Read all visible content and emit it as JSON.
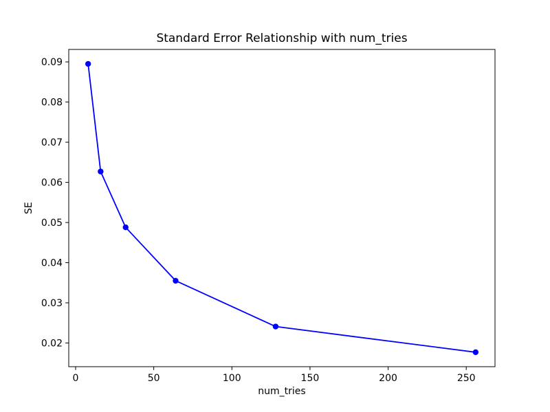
{
  "chart_data": {
    "type": "line",
    "title": "Standard Error Relationship with num_tries",
    "xlabel": "num_tries",
    "ylabel": "SE",
    "x": [
      8,
      16,
      32,
      64,
      128,
      256
    ],
    "y": [
      0.0895,
      0.0627,
      0.0488,
      0.0355,
      0.0241,
      0.0177
    ],
    "xlim": [
      -4.4,
      268.4
    ],
    "ylim": [
      0.0141,
      0.0931
    ],
    "xticks": [
      0,
      50,
      100,
      150,
      200,
      250
    ],
    "xtick_labels": [
      "0",
      "50",
      "100",
      "150",
      "200",
      "250"
    ],
    "yticks": [
      0.02,
      0.03,
      0.04,
      0.05,
      0.06,
      0.07,
      0.08,
      0.09
    ],
    "ytick_labels": [
      "0.02",
      "0.03",
      "0.04",
      "0.05",
      "0.06",
      "0.07",
      "0.08",
      "0.09"
    ],
    "line_color": "#0000ff",
    "marker": "circle",
    "marker_radius": 4.2,
    "line_width": 1.8,
    "grid": false,
    "legend": "none",
    "background_color": "#ffffff",
    "spine_color": "#000000"
  }
}
